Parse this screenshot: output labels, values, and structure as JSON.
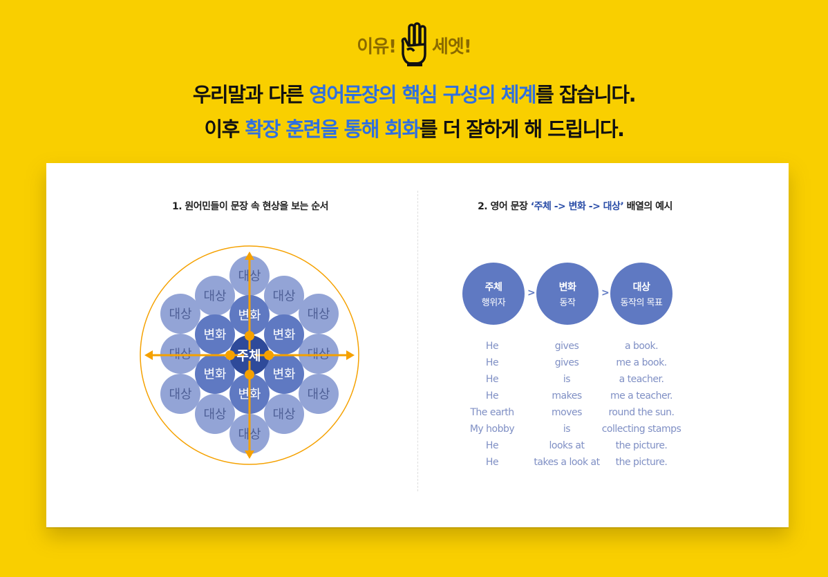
{
  "badge": {
    "left": "이유!",
    "right": "세엣!",
    "icon": "three-fingers-hand-icon"
  },
  "headline": {
    "line1": [
      {
        "text": "우리말과 다른 ",
        "hl": false
      },
      {
        "text": "영어문장의 핵심 구성의 체계",
        "hl": true
      },
      {
        "text": "를 잡습니다.",
        "hl": false
      }
    ],
    "line2": [
      {
        "text": "이후 ",
        "hl": false
      },
      {
        "text": "확장 훈련을 통해 회화",
        "hl": true
      },
      {
        "text": "를 더 잘하게 해 드립니다.",
        "hl": false
      }
    ]
  },
  "left_section": {
    "title": "1. 원어민들이 문장 속 현상을 보는 순서",
    "center_label": "주체",
    "inner_label": "변화",
    "outer_label": "대상"
  },
  "right_section": {
    "title_prefix": "2. 영어 문장 ",
    "title_highlight": "‘주체 -> 변화 -> 대상’",
    "title_suffix": " 배열의 예시",
    "headers": [
      {
        "title": "주체",
        "sub": "행위자"
      },
      {
        "title": "변화",
        "sub": "동작"
      },
      {
        "title": "대상",
        "sub": "동작의 목표"
      }
    ],
    "chevron": ">",
    "rows": [
      [
        "He",
        "gives",
        "a  book."
      ],
      [
        "He",
        "gives",
        "me a book."
      ],
      [
        "He",
        "is",
        "a teacher."
      ],
      [
        "He",
        "makes",
        "me a teacher."
      ],
      [
        "The earth",
        "moves",
        "round the sun."
      ],
      [
        "My hobby",
        "is",
        "collecting stamps"
      ],
      [
        "He",
        "looks at",
        "the picture."
      ],
      [
        "He",
        "takes a look at",
        "the picture."
      ]
    ]
  },
  "colors": {
    "background": "#f9cf00",
    "highlight": "#2f6fe0",
    "center": "#2e4a9a",
    "inner": "#5f79c2",
    "outer": "#93a4d6",
    "arrow": "#f5a100"
  }
}
